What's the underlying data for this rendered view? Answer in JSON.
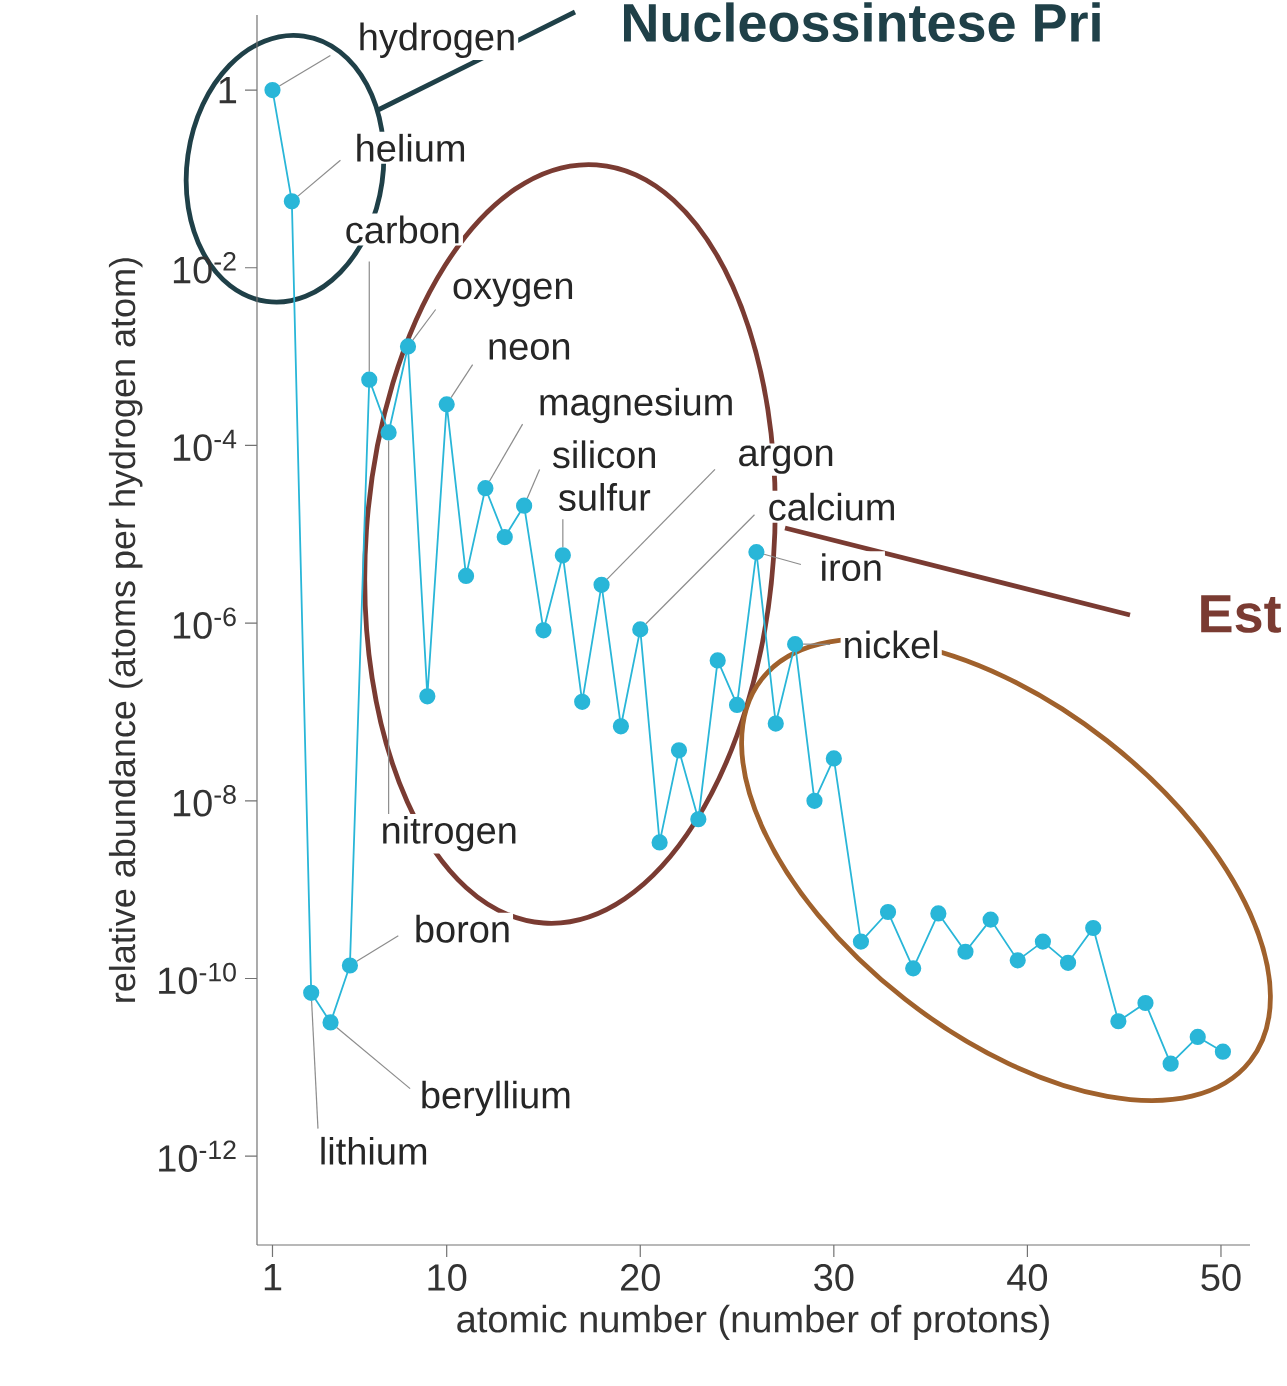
{
  "chart_data": {
    "type": "line",
    "xlabel": "atomic number (number of protons)",
    "ylabel": "relative abundance (atoms per hydrogen atom)",
    "log": "y",
    "marker": "circle",
    "line_style": "solid",
    "xlim": [
      0.2,
      51.5
    ],
    "ylim": [
      1e-13,
      7
    ],
    "xticks": [
      1,
      10,
      20,
      30,
      40,
      50
    ],
    "yticks": [
      1,
      {
        "value": 0.01,
        "label": "10$^{-2}$"
      },
      {
        "value": 0.0001,
        "label": "10$^{-4}$"
      },
      {
        "value": 1e-06,
        "label": "10$^{-6}$"
      },
      {
        "value": 1e-08,
        "label": "10$^{-8}$"
      },
      {
        "value": 1e-10,
        "label": "10$^{-10}$"
      },
      {
        "value": 1e-12,
        "label": "10$^{-12}$"
      }
    ],
    "series": [
      {
        "color": "#29b6d8",
        "x": [
          1,
          2,
          3,
          4,
          5,
          6,
          7,
          8,
          9,
          10,
          11,
          12,
          13,
          14,
          15,
          16,
          17,
          18,
          19,
          20,
          21,
          22,
          23,
          24,
          25,
          26,
          27,
          28,
          29,
          30,
          31.4,
          32.8,
          34.1,
          35.4,
          36.8,
          38.1,
          39.5,
          40.8,
          42.1,
          43.4,
          44.7,
          46.1,
          47.4,
          48.8,
          50.1
        ],
        "values": [
          1,
          0.056,
          6.9e-11,
          3.2e-11,
          1.4e-10,
          0.00055,
          0.00014,
          0.0013,
          1.5e-07,
          0.00029,
          3.4e-06,
          3.3e-05,
          9.3e-06,
          2.1e-05,
          8.3e-07,
          5.8e-06,
          1.3e-07,
          2.7e-06,
          6.9e-08,
          8.5e-07,
          3.4e-09,
          3.7e-08,
          6.2e-09,
          3.8e-07,
          1.2e-07,
          6.3e-06,
          7.4e-08,
          5.8e-07,
          1e-08,
          3e-08,
          2.6e-10,
          5.6e-10,
          1.3e-10,
          5.4e-10,
          2e-10,
          4.6e-10,
          1.6e-10,
          2.6e-10,
          1.5e-10,
          3.7e-10,
          3.3e-11,
          5.3e-11,
          1.1e-11,
          2.2e-11,
          1.5e-11
        ]
      }
    ],
    "annotations": [
      {
        "text": "hydrogen",
        "x": 1,
        "y": 1
      },
      {
        "text": "helium",
        "x": 2,
        "y": 0.056
      },
      {
        "text": "lithium",
        "x": 3,
        "y": 6.9e-11
      },
      {
        "text": "beryllium",
        "x": 4,
        "y": 3.2e-11
      },
      {
        "text": "boron",
        "x": 5,
        "y": 1.4e-10
      },
      {
        "text": "carbon",
        "x": 6,
        "y": 0.00055
      },
      {
        "text": "nitrogen",
        "x": 7,
        "y": 0.00014
      },
      {
        "text": "oxygen",
        "x": 8,
        "y": 0.0013
      },
      {
        "text": "neon",
        "x": 10,
        "y": 0.00029
      },
      {
        "text": "magnesium",
        "x": 12,
        "y": 3.3e-05
      },
      {
        "text": "silicon",
        "x": 14,
        "y": 2.1e-05
      },
      {
        "text": "sulfur",
        "x": 16,
        "y": 5.8e-06
      },
      {
        "text": "argon",
        "x": 18,
        "y": 2.7e-06
      },
      {
        "text": "calcium",
        "x": 20,
        "y": 8.5e-07
      },
      {
        "text": "iron",
        "x": 26,
        "y": 6.3e-06
      },
      {
        "text": "nickel",
        "x": 28,
        "y": 5.8e-07
      },
      "Nucleossintese Pri",
      "Est"
    ]
  }
}
